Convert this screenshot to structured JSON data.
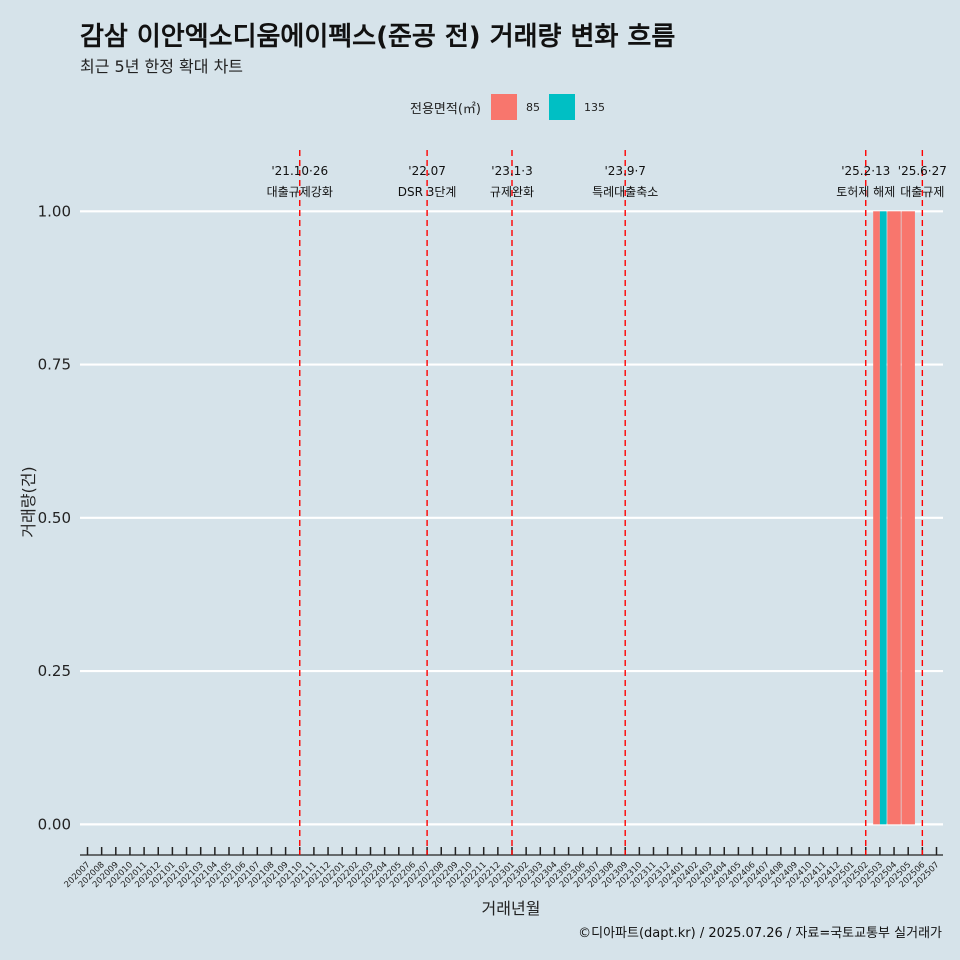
{
  "header": {
    "title": "감삼 이안엑소디움에이펙스(준공 전) 거래량 변화 흐름",
    "subtitle": "최근 5년 한정 확대 차트"
  },
  "legend": {
    "title": "전용면적(㎡)",
    "items": [
      {
        "label": "85",
        "color": "#f8766d"
      },
      {
        "label": "135",
        "color": "#00bfc4"
      }
    ]
  },
  "caption": "©디아파트(dapt.kr) / 2025.07.26 / 자료=국토교통부 실거래가",
  "chart_data": {
    "type": "bar",
    "title": "감삼 이안엑소디움에이펙스(준공 전) 거래량 변화 흐름",
    "subtitle": "최근 5년 한정 확대 차트",
    "xlabel": "거래년월",
    "ylabel": "거래량(건)",
    "ylim": [
      -0.05,
      1.1
    ],
    "yticks": [
      "0.00",
      "0.25",
      "0.50",
      "0.75",
      "1.00"
    ],
    "grid": true,
    "legend_position": "top",
    "categories": [
      "202007",
      "202008",
      "202009",
      "202010",
      "202011",
      "202012",
      "202101",
      "202102",
      "202103",
      "202104",
      "202105",
      "202106",
      "202107",
      "202108",
      "202109",
      "202110",
      "202111",
      "202112",
      "202201",
      "202202",
      "202203",
      "202204",
      "202205",
      "202206",
      "202207",
      "202208",
      "202209",
      "202210",
      "202211",
      "202212",
      "202301",
      "202302",
      "202303",
      "202304",
      "202305",
      "202306",
      "202307",
      "202308",
      "202309",
      "202310",
      "202311",
      "202312",
      "202401",
      "202402",
      "202403",
      "202404",
      "202405",
      "202406",
      "202407",
      "202408",
      "202409",
      "202410",
      "202411",
      "202412",
      "202501",
      "202502",
      "202503",
      "202504",
      "202505",
      "202506",
      "202507"
    ],
    "bars": [
      {
        "month": "202503",
        "series": "85",
        "value": 1
      },
      {
        "month": "202503",
        "series": "135",
        "value": 1
      },
      {
        "month": "202504",
        "series": "85",
        "value": 1
      },
      {
        "month": "202505",
        "series": "85",
        "value": 1
      }
    ],
    "series": [
      {
        "name": "85",
        "color": "#f8766d"
      },
      {
        "name": "135",
        "color": "#00bfc4"
      }
    ],
    "events": [
      {
        "month": "202110",
        "date": "'21.10·26",
        "label": "대출규제강화"
      },
      {
        "month": "202207",
        "date": "'22.07",
        "label": "DSR 3단계"
      },
      {
        "month": "202301",
        "date": "'23.1·3",
        "label": "규제완화"
      },
      {
        "month": "202309",
        "date": "'23.9·7",
        "label": "특례대출축소"
      },
      {
        "month": "202502",
        "date": "'25.2·13",
        "label": "토허제 해제"
      },
      {
        "month": "202506",
        "date": "'25.6·27",
        "label": "대출규제"
      }
    ]
  }
}
